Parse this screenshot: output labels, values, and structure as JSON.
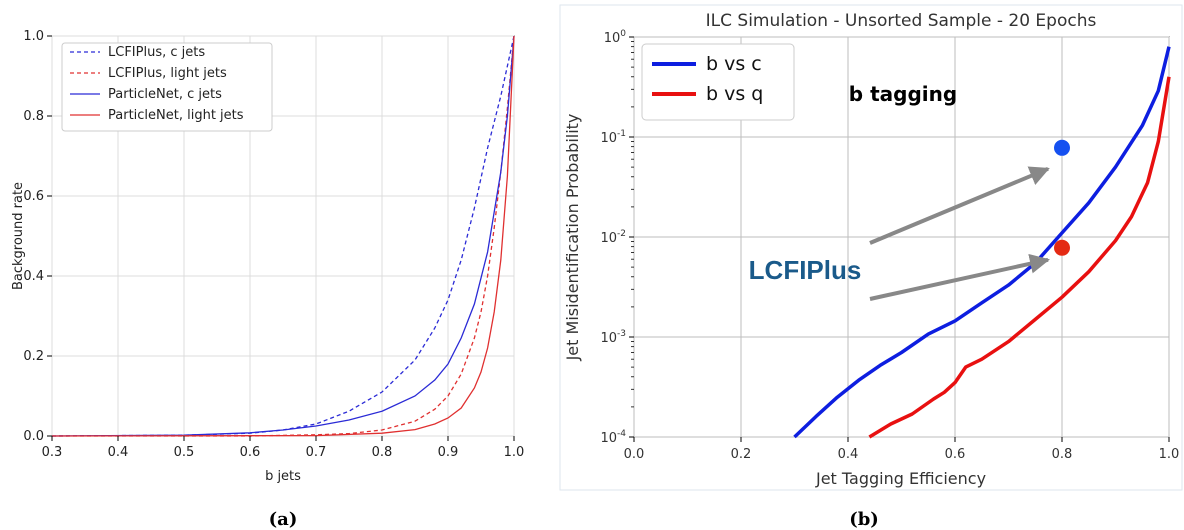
{
  "captions": {
    "a": "(a)",
    "b": "(b)"
  },
  "chart_data": [
    {
      "type": "line",
      "title": "",
      "xlabel": "b jets",
      "ylabel": "Background rate",
      "xlim": [
        0.3,
        1.0
      ],
      "ylim": [
        0.0,
        1.0
      ],
      "xticks": [
        "0.3",
        "0.4",
        "0.5",
        "0.6",
        "0.7",
        "0.8",
        "0.9",
        "1.0"
      ],
      "yticks": [
        "0.0",
        "0.2",
        "0.4",
        "0.6",
        "0.8",
        "1.0"
      ],
      "grid": true,
      "legend_position": "top-left",
      "series": [
        {
          "name": "LCFIPlus, c jets",
          "color": "#2b2bd6",
          "style": "dashed",
          "x": [
            0.3,
            0.5,
            0.6,
            0.65,
            0.7,
            0.75,
            0.8,
            0.85,
            0.88,
            0.9,
            0.92,
            0.94,
            0.96,
            0.98,
            1.0
          ],
          "y": [
            0.0,
            0.002,
            0.007,
            0.015,
            0.03,
            0.062,
            0.11,
            0.19,
            0.27,
            0.34,
            0.44,
            0.57,
            0.72,
            0.85,
            1.0
          ]
        },
        {
          "name": "LCFIPlus, light jets",
          "color": "#e03030",
          "style": "dashed",
          "x": [
            0.3,
            0.6,
            0.7,
            0.75,
            0.8,
            0.85,
            0.88,
            0.9,
            0.92,
            0.94,
            0.95,
            0.96,
            0.97,
            0.98,
            0.99,
            1.0
          ],
          "y": [
            0.0,
            0.0,
            0.003,
            0.006,
            0.015,
            0.037,
            0.067,
            0.1,
            0.155,
            0.245,
            0.31,
            0.4,
            0.52,
            0.66,
            0.82,
            1.0
          ]
        },
        {
          "name": "ParticleNet, c jets",
          "color": "#2b2bd6",
          "style": "solid",
          "x": [
            0.3,
            0.5,
            0.6,
            0.65,
            0.7,
            0.75,
            0.8,
            0.85,
            0.88,
            0.9,
            0.92,
            0.94,
            0.96,
            0.98,
            0.99,
            1.0
          ],
          "y": [
            0.0,
            0.002,
            0.008,
            0.015,
            0.025,
            0.04,
            0.062,
            0.1,
            0.14,
            0.18,
            0.245,
            0.33,
            0.46,
            0.66,
            0.8,
            1.0
          ]
        },
        {
          "name": "ParticleNet, light jets",
          "color": "#e03030",
          "style": "solid",
          "x": [
            0.3,
            0.7,
            0.8,
            0.85,
            0.88,
            0.9,
            0.92,
            0.94,
            0.95,
            0.96,
            0.97,
            0.98,
            0.99,
            1.0
          ],
          "y": [
            0.0,
            0.001,
            0.007,
            0.016,
            0.03,
            0.045,
            0.07,
            0.12,
            0.16,
            0.22,
            0.31,
            0.44,
            0.65,
            1.0
          ]
        }
      ]
    },
    {
      "type": "line",
      "title": "ILC Simulation - Unsorted Sample - 20 Epochs",
      "xlabel": "Jet Tagging Efficiency",
      "ylabel": "Jet Misidentification Probability",
      "xlim": [
        0.0,
        1.0
      ],
      "ylim": [
        0.0001,
        1.0
      ],
      "yscale": "log",
      "xticks": [
        "0.0",
        "0.2",
        "0.4",
        "0.6",
        "0.8",
        "1.0"
      ],
      "yticks": [
        {
          "base": "10",
          "exp": "-4",
          "value": 0.0001
        },
        {
          "base": "10",
          "exp": "-3",
          "value": 0.001
        },
        {
          "base": "10",
          "exp": "-2",
          "value": 0.01
        },
        {
          "base": "10",
          "exp": "-1",
          "value": 0.1
        },
        {
          "base": "10",
          "exp": "0",
          "value": 1.0
        }
      ],
      "grid": true,
      "legend_position": "top-left",
      "annotation": "b tagging",
      "series": [
        {
          "name": "b vs c",
          "color": "#0d1ee0",
          "x": [
            0.3,
            0.34,
            0.38,
            0.42,
            0.46,
            0.5,
            0.55,
            0.6,
            0.65,
            0.7,
            0.75,
            0.8,
            0.85,
            0.9,
            0.95,
            0.98,
            1.0
          ],
          "y": [
            0.0001,
            0.00016,
            0.00025,
            0.00037,
            0.00052,
            0.0007,
            0.00107,
            0.00145,
            0.0022,
            0.0033,
            0.0055,
            0.011,
            0.022,
            0.05,
            0.13,
            0.29,
            0.8
          ]
        },
        {
          "name": "b vs q",
          "color": "#e81010",
          "x": [
            0.44,
            0.48,
            0.52,
            0.56,
            0.58,
            0.6,
            0.62,
            0.65,
            0.7,
            0.75,
            0.8,
            0.85,
            0.9,
            0.93,
            0.96,
            0.98,
            1.0
          ],
          "y": [
            0.0001,
            0.000135,
            0.00017,
            0.00024,
            0.00028,
            0.00035,
            0.0005,
            0.0006,
            0.0009,
            0.0015,
            0.0025,
            0.0045,
            0.0092,
            0.016,
            0.035,
            0.09,
            0.4
          ]
        }
      ],
      "markers": [
        {
          "label": "LCFIPlus",
          "series": "b vs c",
          "color": "#1550f0",
          "x": 0.8,
          "y": 0.078
        },
        {
          "label": "LCFIPlus",
          "series": "b vs q",
          "color": "#e42a14",
          "x": 0.8,
          "y": 0.0078
        }
      ],
      "marker_label": "LCFIPlus"
    }
  ]
}
